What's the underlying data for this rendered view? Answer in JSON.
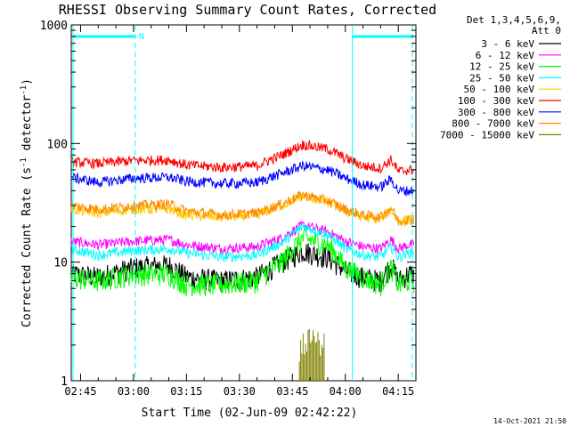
{
  "chart_data": {
    "type": "line",
    "title": "RHESSI Observing Summary Count Rates, Corrected",
    "xlabel": "Start Time (02-Jun-09 02:42:22)",
    "ylabel": "Corrected Count Rate (s",
    "ylabel_sup1": "-1",
    "ylabel_mid": " detector",
    "ylabel_sup2": "-1",
    "ylabel_end": ")",
    "yscale": "log",
    "ylim": [
      1,
      1000
    ],
    "xlim": [
      "02:42:22",
      "04:20:00"
    ],
    "x_ticks": [
      "02:45",
      "03:00",
      "03:15",
      "03:30",
      "03:45",
      "04:00",
      "04:15"
    ],
    "y_ticks": [
      {
        "value": 1,
        "label": "1"
      },
      {
        "value": 10,
        "label": "10"
      },
      {
        "value": 100,
        "label": "100"
      },
      {
        "value": 1000,
        "label": "1000"
      }
    ],
    "legend_header": [
      "Det 1,3,4,5,6,9,",
      "Att 0"
    ],
    "legend_position": "right",
    "series": [
      {
        "name": "3 - 6 keV",
        "color": "#000000",
        "x": [
          "02:42",
          "02:50",
          "03:00",
          "03:10",
          "03:15",
          "03:25",
          "03:35",
          "03:42",
          "03:48",
          "03:55",
          "04:00",
          "04:05",
          "04:10",
          "04:13",
          "04:15",
          "04:18",
          "04:20"
        ],
        "values": [
          8,
          7.5,
          9,
          9.5,
          7.5,
          7,
          7.5,
          10,
          12.5,
          11,
          8.5,
          7.5,
          7,
          9.5,
          7,
          8,
          8
        ]
      },
      {
        "name": "6 - 12 keV",
        "color": "#ff00ff",
        "x": [
          "02:42",
          "02:50",
          "03:00",
          "03:10",
          "03:15",
          "03:25",
          "03:35",
          "03:42",
          "03:48",
          "03:55",
          "04:00",
          "04:05",
          "04:10",
          "04:13",
          "04:15",
          "04:18",
          "04:20"
        ],
        "values": [
          15,
          14,
          15,
          15.5,
          14,
          13,
          13.5,
          16,
          20.5,
          18,
          15,
          13.5,
          13,
          15.5,
          13,
          14,
          14
        ]
      },
      {
        "name": "12 - 25 keV",
        "color": "#00ff00",
        "x": [
          "02:42",
          "02:50",
          "03:00",
          "03:10",
          "03:15",
          "03:25",
          "03:35",
          "03:42",
          "03:48",
          "03:55",
          "04:00",
          "04:05",
          "04:10",
          "04:13",
          "04:15",
          "04:18",
          "04:20"
        ],
        "values": [
          7.5,
          7,
          8,
          8,
          6.5,
          6.5,
          7,
          10,
          16,
          14,
          9,
          7.5,
          6.5,
          9,
          6.5,
          7,
          7
        ]
      },
      {
        "name": "25 - 50 keV",
        "color": "#00ffff",
        "x": [
          "02:42",
          "02:50",
          "03:00",
          "03:10",
          "03:15",
          "03:25",
          "03:35",
          "03:42",
          "03:48",
          "03:55",
          "04:00",
          "04:05",
          "04:10",
          "04:13",
          "04:15",
          "04:18",
          "04:20"
        ],
        "values": [
          13,
          11.5,
          12.5,
          13,
          12,
          11,
          11.5,
          14.5,
          20,
          17,
          13,
          11.5,
          11,
          13.5,
          11,
          12,
          12
        ]
      },
      {
        "name": "50 - 100 keV",
        "color": "#ffc800",
        "x": [
          "02:42",
          "02:50",
          "03:00",
          "03:10",
          "03:15",
          "03:25",
          "03:35",
          "03:42",
          "03:48",
          "03:55",
          "04:00",
          "04:05",
          "04:10",
          "04:13",
          "04:15",
          "04:18",
          "04:20"
        ],
        "values": [
          28,
          26,
          28,
          28,
          25,
          24,
          25,
          30,
          36,
          32,
          27,
          24,
          23,
          28,
          22,
          23,
          23
        ]
      },
      {
        "name": "100 - 300 keV",
        "color": "#ff0000",
        "x": [
          "02:42",
          "02:50",
          "03:00",
          "03:10",
          "03:15",
          "03:25",
          "03:35",
          "03:42",
          "03:48",
          "03:55",
          "04:00",
          "04:05",
          "04:10",
          "04:13",
          "04:15",
          "04:18",
          "04:20"
        ],
        "values": [
          70,
          68,
          72,
          73,
          66,
          63,
          65,
          80,
          98,
          90,
          75,
          65,
          62,
          73,
          58,
          60,
          60
        ]
      },
      {
        "name": "300 - 800 keV",
        "color": "#0000ff",
        "x": [
          "02:42",
          "02:50",
          "03:00",
          "03:10",
          "03:15",
          "03:25",
          "03:35",
          "03:42",
          "03:48",
          "03:55",
          "04:00",
          "04:05",
          "04:10",
          "04:13",
          "04:15",
          "04:18",
          "04:20"
        ],
        "values": [
          52,
          47,
          51,
          52,
          48,
          46,
          47,
          56,
          65,
          60,
          51,
          45,
          43,
          50,
          40,
          40,
          40
        ]
      },
      {
        "name": "800 - 7000 keV",
        "color": "#ff8c00",
        "x": [
          "02:42",
          "02:50",
          "03:00",
          "03:10",
          "03:15",
          "03:25",
          "03:35",
          "03:42",
          "03:48",
          "03:55",
          "04:00",
          "04:05",
          "04:10",
          "04:13",
          "04:15",
          "04:18",
          "04:20"
        ],
        "values": [
          30,
          28,
          30,
          31,
          27,
          25,
          26,
          31,
          37,
          33,
          28,
          25,
          24,
          29,
          22,
          23,
          23
        ]
      },
      {
        "name": "7000 - 15000 keV",
        "color": "#808000",
        "x": [
          "03:47",
          "03:48",
          "03:49",
          "03:50",
          "03:51",
          "03:52",
          "03:53",
          "03:54"
        ],
        "values": [
          1.5,
          2.5,
          1.8,
          2.5,
          2.2,
          2.5,
          1.6,
          2.2
        ]
      }
    ],
    "markers": [
      {
        "label": "N",
        "time": "02:42",
        "color": "#00ffff"
      },
      {
        "label": "",
        "time": "04:02",
        "color": "#00ffff"
      }
    ],
    "grid": false
  },
  "footer": {
    "timestamp": "14-Oct-2021 21:50"
  }
}
